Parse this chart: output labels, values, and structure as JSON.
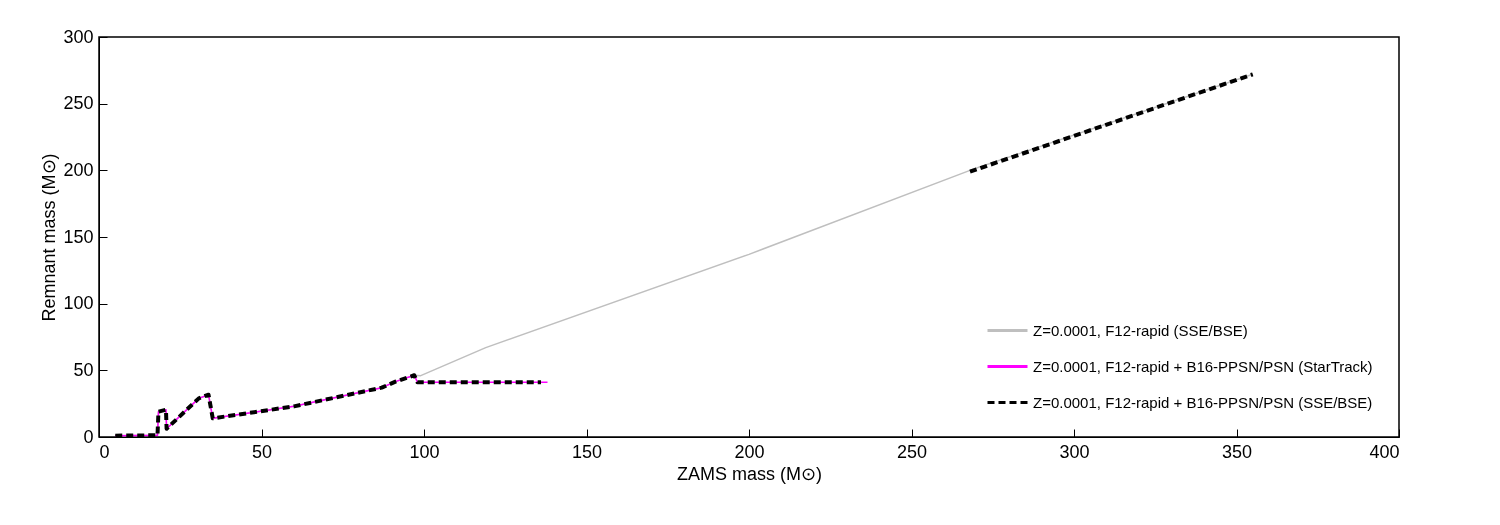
{
  "chart_data": {
    "type": "line",
    "xlabel": "ZAMS mass (M⊙)",
    "ylabel": "Remnant mass (M⊙)",
    "xlim": [
      0,
      400
    ],
    "xticks": [
      0,
      50,
      100,
      150,
      200,
      250,
      300,
      350,
      400
    ],
    "ylim": [
      0,
      300
    ],
    "yticks": [
      0,
      50,
      100,
      150,
      200,
      250,
      300
    ],
    "grid": false,
    "legend": "bottom right",
    "marker": "none",
    "series": [
      {
        "name": "Z=0.0001, F12-rapid (SSE/BSE)",
        "color": "#bfbfbf",
        "line_style": "solid",
        "x": [
          5,
          18,
          18.3,
          20.6,
          20.8,
          30.7,
          33.7,
          35,
          60,
          87,
          91.4,
          97,
          99,
          119,
          200,
          268,
          355
        ],
        "values": [
          1,
          1.3,
          19,
          20.5,
          6.2,
          29,
          31.7,
          14,
          23,
          37,
          41.7,
          46.3,
          46,
          67,
          137,
          200,
          272
        ]
      },
      {
        "name": "Z=0.0001, F12-rapid + B16-PPSN/PSN (StarTrack)",
        "color": "#ff00ff",
        "line_style": "solid",
        "x": [
          5,
          18,
          18.3,
          20.6,
          20.8,
          30.7,
          33.7,
          35,
          60,
          87,
          91.4,
          97,
          98,
          138
        ],
        "values": [
          1,
          1.3,
          19,
          20.5,
          6.2,
          29,
          31.7,
          14,
          23,
          37,
          41.7,
          46.3,
          41,
          41
        ]
      },
      {
        "name": "Z=0.0001, F12-rapid + B16-PPSN/PSN (SSE/BSE)",
        "color": "#000000",
        "line_style": "dashed",
        "x": [
          5,
          18,
          18.3,
          20.6,
          20.8,
          30.7,
          33.7,
          35,
          60,
          87,
          91.4,
          97,
          98,
          136,
          200,
          268,
          355
        ],
        "values": [
          1,
          1.3,
          19,
          20.5,
          6.2,
          29,
          31.7,
          14,
          23,
          37,
          41.7,
          46.3,
          41,
          41,
          null,
          199,
          272
        ]
      }
    ]
  }
}
